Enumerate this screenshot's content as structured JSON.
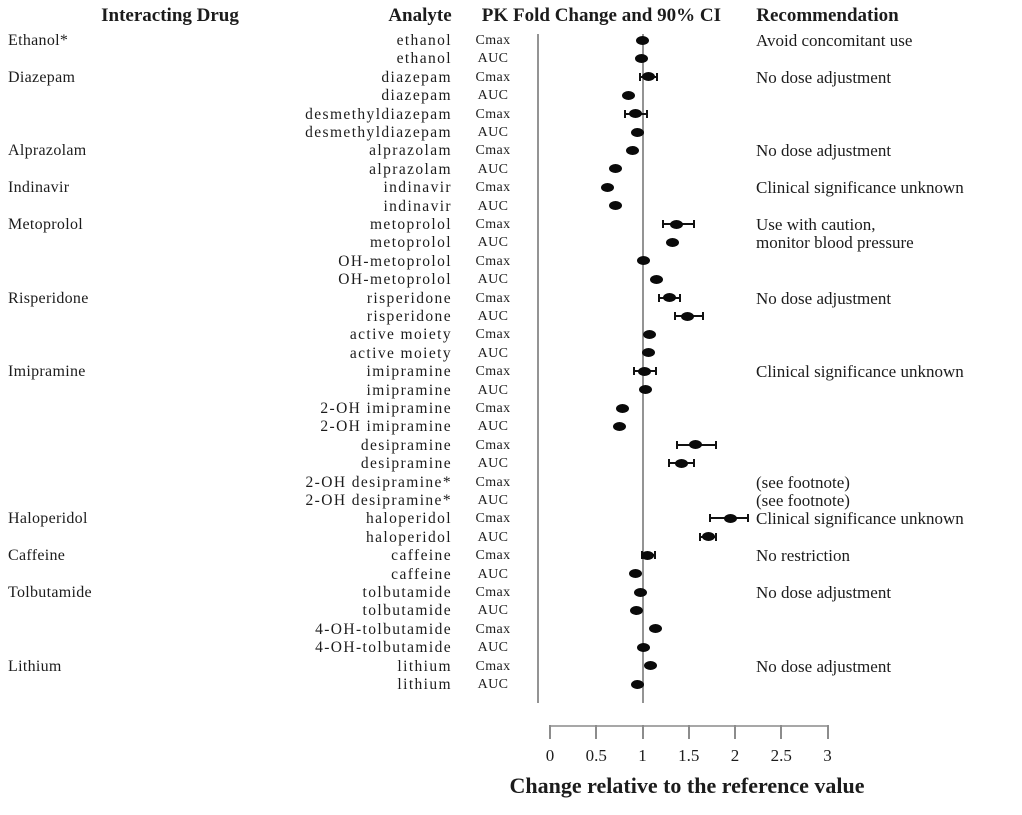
{
  "figure": {
    "headers": {
      "interacting_drug": "Interacting Drug",
      "analyte": "Analyte",
      "pk": "PK",
      "fold_change": "Fold Change and 90% CI",
      "recommendation": "Recommendation"
    },
    "axis": {
      "xlabel": "Change relative to the reference value"
    }
  },
  "chart_data": {
    "type": "scatter",
    "subtype": "forest-plot",
    "title": "Fold Change and 90% CI",
    "xlabel": "Change relative to the reference value",
    "xlim": [
      0,
      3
    ],
    "x_ticks": [
      0,
      0.5,
      1,
      1.5,
      2,
      2.5,
      3
    ],
    "x_tick_labels": [
      "0",
      "0.5",
      "1",
      "1.5",
      "2",
      "2.5",
      "3"
    ],
    "reference_line_x": 1,
    "grid": false,
    "marker_color": "#0a0a0a",
    "line_color": "#949494",
    "rows": [
      {
        "drug": "Ethanol*",
        "analyte": "ethanol",
        "pk": "Cmax",
        "value": 1.0,
        "ci": null,
        "rec": "Avoid concomitant use"
      },
      {
        "drug": null,
        "analyte": "ethanol",
        "pk": "AUC",
        "value": 0.99,
        "ci": null,
        "rec": null
      },
      {
        "drug": "Diazepam",
        "analyte": "diazepam",
        "pk": "Cmax",
        "value": 1.06,
        "ci": [
          0.97,
          1.16
        ],
        "rec": "No dose adjustment"
      },
      {
        "drug": null,
        "analyte": "diazepam",
        "pk": "AUC",
        "value": 0.85,
        "ci": null,
        "rec": null
      },
      {
        "drug": null,
        "analyte": "desmethyldiazepam",
        "pk": "Cmax",
        "value": 0.92,
        "ci": [
          0.81,
          1.05
        ],
        "rec": null
      },
      {
        "drug": null,
        "analyte": "desmethyldiazepam",
        "pk": "AUC",
        "value": 0.95,
        "ci": null,
        "rec": null
      },
      {
        "drug": "Alprazolam",
        "analyte": "alprazolam",
        "pk": "Cmax",
        "value": 0.89,
        "ci": null,
        "rec": "No dose adjustment"
      },
      {
        "drug": null,
        "analyte": "alprazolam",
        "pk": "AUC",
        "value": 0.71,
        "ci": null,
        "rec": null
      },
      {
        "drug": "Indinavir",
        "analyte": "indinavir",
        "pk": "Cmax",
        "value": 0.62,
        "ci": null,
        "rec": "Clinical significance unknown"
      },
      {
        "drug": null,
        "analyte": "indinavir",
        "pk": "AUC",
        "value": 0.71,
        "ci": null,
        "rec": null
      },
      {
        "drug": "Metoprolol",
        "analyte": "metoprolol",
        "pk": "Cmax",
        "value": 1.37,
        "ci": [
          1.22,
          1.56
        ],
        "rec": "Use with caution,"
      },
      {
        "drug": null,
        "analyte": "metoprolol",
        "pk": "AUC",
        "value": 1.32,
        "ci": null,
        "rec": "monitor blood pressure"
      },
      {
        "drug": null,
        "analyte": "OH-metoprolol",
        "pk": "Cmax",
        "value": 1.01,
        "ci": null,
        "rec": null
      },
      {
        "drug": null,
        "analyte": "OH-metoprolol",
        "pk": "AUC",
        "value": 1.15,
        "ci": null,
        "rec": null
      },
      {
        "drug": "Risperidone",
        "analyte": "risperidone",
        "pk": "Cmax",
        "value": 1.29,
        "ci": [
          1.18,
          1.4
        ],
        "rec": "No dose adjustment"
      },
      {
        "drug": null,
        "analyte": "risperidone",
        "pk": "AUC",
        "value": 1.49,
        "ci": [
          1.35,
          1.65
        ],
        "rec": null
      },
      {
        "drug": null,
        "analyte": "active moiety",
        "pk": "Cmax",
        "value": 1.08,
        "ci": null,
        "rec": null
      },
      {
        "drug": null,
        "analyte": "active moiety",
        "pk": "AUC",
        "value": 1.07,
        "ci": null,
        "rec": null
      },
      {
        "drug": "Imipramine",
        "analyte": "imipramine",
        "pk": "Cmax",
        "value": 1.02,
        "ci": [
          0.91,
          1.15
        ],
        "rec": "Clinical significance unknown"
      },
      {
        "drug": null,
        "analyte": "imipramine",
        "pk": "AUC",
        "value": 1.03,
        "ci": null,
        "rec": null
      },
      {
        "drug": null,
        "analyte": "2-OH imipramine",
        "pk": "Cmax",
        "value": 0.78,
        "ci": null,
        "rec": null
      },
      {
        "drug": null,
        "analyte": "2-OH imipramine",
        "pk": "AUC",
        "value": 0.75,
        "ci": null,
        "rec": null
      },
      {
        "drug": null,
        "analyte": "desipramine",
        "pk": "Cmax",
        "value": 1.57,
        "ci": [
          1.37,
          1.79
        ],
        "rec": null
      },
      {
        "drug": null,
        "analyte": "desipramine",
        "pk": "AUC",
        "value": 1.42,
        "ci": [
          1.29,
          1.56
        ],
        "rec": null
      },
      {
        "drug": null,
        "analyte": "2-OH desipramine*",
        "pk": "Cmax",
        "value": null,
        "ci": null,
        "rec": "(see footnote)"
      },
      {
        "drug": null,
        "analyte": "2-OH desipramine*",
        "pk": "AUC",
        "value": null,
        "ci": null,
        "rec": "(see footnote)"
      },
      {
        "drug": "Haloperidol",
        "analyte": "haloperidol",
        "pk": "Cmax",
        "value": 1.95,
        "ci": [
          1.73,
          2.14
        ],
        "rec": "Clinical significance unknown"
      },
      {
        "drug": null,
        "analyte": "haloperidol",
        "pk": "AUC",
        "value": 1.71,
        "ci": [
          1.62,
          1.79
        ],
        "rec": null
      },
      {
        "drug": "Caffeine",
        "analyte": "caffeine",
        "pk": "Cmax",
        "value": 1.05,
        "ci": [
          0.99,
          1.13
        ],
        "rec": "No restriction"
      },
      {
        "drug": null,
        "analyte": "caffeine",
        "pk": "AUC",
        "value": 0.92,
        "ci": null,
        "rec": null
      },
      {
        "drug": "Tolbutamide",
        "analyte": "tolbutamide",
        "pk": "Cmax",
        "value": 0.98,
        "ci": null,
        "rec": "No dose adjustment"
      },
      {
        "drug": null,
        "analyte": "tolbutamide",
        "pk": "AUC",
        "value": 0.93,
        "ci": null,
        "rec": null
      },
      {
        "drug": null,
        "analyte": "4-OH-tolbutamide",
        "pk": "Cmax",
        "value": 1.14,
        "ci": null,
        "rec": null
      },
      {
        "drug": null,
        "analyte": "4-OH-tolbutamide",
        "pk": "AUC",
        "value": 1.01,
        "ci": null,
        "rec": null
      },
      {
        "drug": "Lithium",
        "analyte": "lithium",
        "pk": "Cmax",
        "value": 1.09,
        "ci": null,
        "rec": "No dose adjustment"
      },
      {
        "drug": null,
        "analyte": "lithium",
        "pk": "AUC",
        "value": 0.95,
        "ci": null,
        "rec": null
      }
    ]
  }
}
